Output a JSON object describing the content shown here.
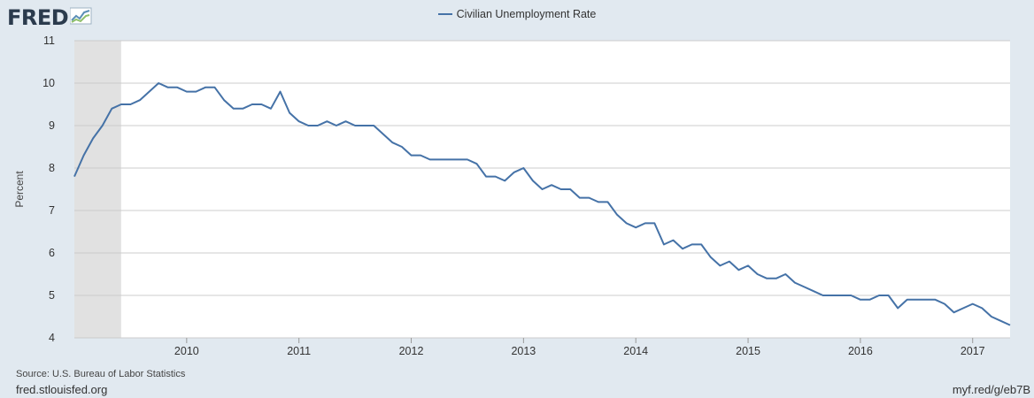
{
  "header": {
    "logo_text": "FRED",
    "logo_icon": "fred-chart-icon"
  },
  "footer": {
    "source": "Source: U.S. Bureau of Labor Statistics",
    "site": "fred.stlouisfed.org",
    "shortlink": "myf.red/g/eb7B"
  },
  "colors": {
    "line": "#4572a7",
    "plot_background": "#ffffff",
    "page_background": "#e1e9f0",
    "recession_shade": "#e1e1e1",
    "gridline": "#cccccc"
  },
  "chart_data": {
    "type": "line",
    "title": "",
    "xlabel": "",
    "ylabel": "Percent",
    "ylim": [
      4,
      11
    ],
    "xlim": [
      "2009-01",
      "2017-05"
    ],
    "yticks": [
      4,
      5,
      6,
      7,
      8,
      9,
      10,
      11
    ],
    "xticks": [
      "2010",
      "2011",
      "2012",
      "2013",
      "2014",
      "2015",
      "2016",
      "2017"
    ],
    "grid": "horizontal",
    "legend": "top-center",
    "shaded_periods": [
      {
        "label": "Recession",
        "start": "2009-01",
        "end": "2009-06"
      }
    ],
    "series": [
      {
        "name": "Civilian Unemployment Rate",
        "start": "2009-01",
        "frequency": "monthly",
        "values": [
          7.8,
          8.3,
          8.7,
          9.0,
          9.4,
          9.5,
          9.5,
          9.6,
          9.8,
          10.0,
          9.9,
          9.9,
          9.8,
          9.8,
          9.9,
          9.9,
          9.6,
          9.4,
          9.4,
          9.5,
          9.5,
          9.4,
          9.8,
          9.3,
          9.1,
          9.0,
          9.0,
          9.1,
          9.0,
          9.1,
          9.0,
          9.0,
          9.0,
          8.8,
          8.6,
          8.5,
          8.3,
          8.3,
          8.2,
          8.2,
          8.2,
          8.2,
          8.2,
          8.1,
          7.8,
          7.8,
          7.7,
          7.9,
          8.0,
          7.7,
          7.5,
          7.6,
          7.5,
          7.5,
          7.3,
          7.3,
          7.2,
          7.2,
          6.9,
          6.7,
          6.6,
          6.7,
          6.7,
          6.2,
          6.3,
          6.1,
          6.2,
          6.2,
          5.9,
          5.7,
          5.8,
          5.6,
          5.7,
          5.5,
          5.4,
          5.4,
          5.5,
          5.3,
          5.2,
          5.1,
          5.0,
          5.0,
          5.0,
          5.0,
          4.9,
          4.9,
          5.0,
          5.0,
          4.7,
          4.9,
          4.9,
          4.9,
          4.9,
          4.8,
          4.6,
          4.7,
          4.8,
          4.7,
          4.5,
          4.4,
          4.3
        ]
      }
    ]
  }
}
